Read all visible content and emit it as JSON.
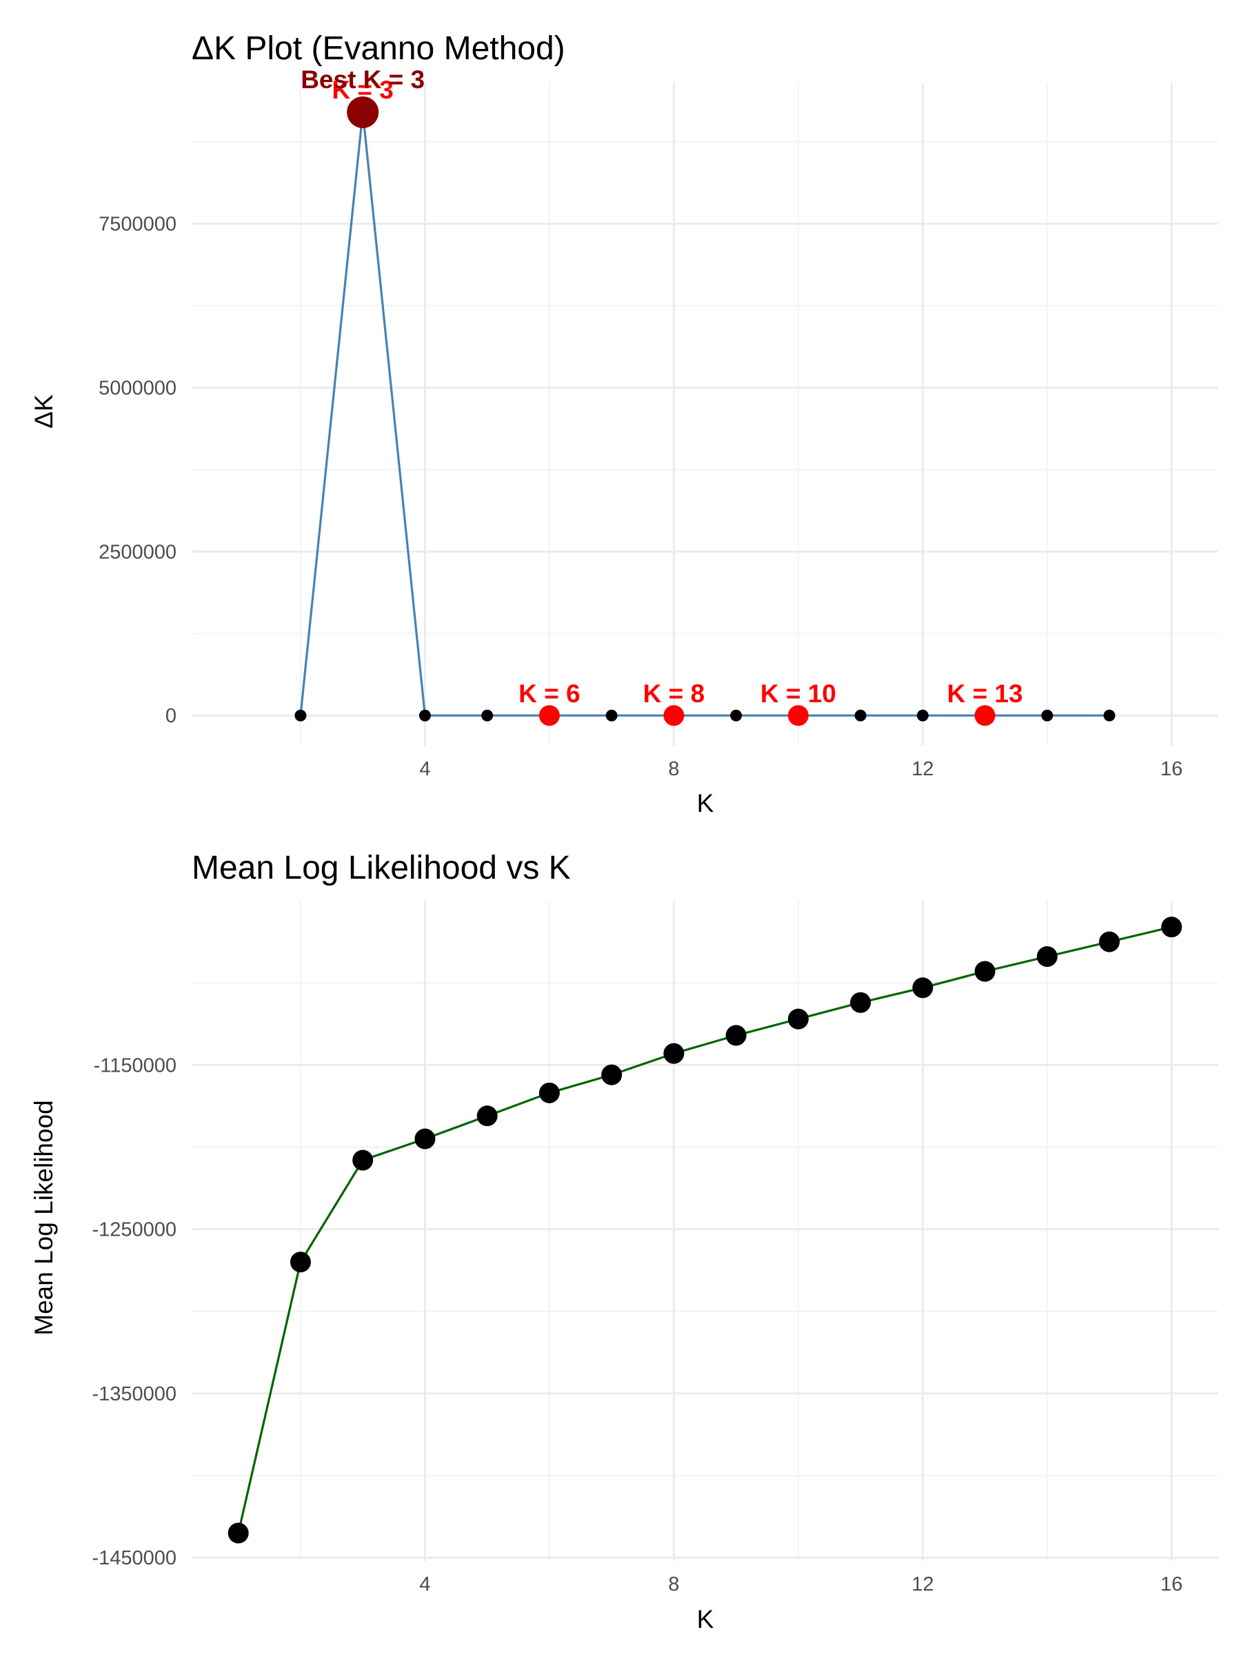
{
  "chart_data": [
    {
      "type": "line",
      "title": "ΔK Plot (Evanno Method)",
      "xlabel": "K",
      "ylabel": "ΔK",
      "x_ticks": [
        4,
        8,
        12,
        16
      ],
      "y_ticks": [
        "0",
        "2500000",
        "5000000",
        "7500000"
      ],
      "y_tick_values": [
        0,
        2500000,
        5000000,
        7500000
      ],
      "xlim": [
        0.25,
        16.75
      ],
      "ylim": [
        -460000,
        9650000
      ],
      "grid": true,
      "line_color": "#4682b4",
      "point_color": "#000000",
      "highlight_color": "#ff0000",
      "best_color": "#8b0000",
      "x": [
        2,
        3,
        4,
        5,
        6,
        7,
        8,
        9,
        10,
        11,
        12,
        13,
        14,
        15
      ],
      "y": [
        0,
        9200000,
        0,
        0,
        0,
        0,
        0,
        0,
        0,
        0,
        0,
        0,
        0,
        0
      ],
      "highlighted_k": [
        6,
        8,
        10,
        13
      ],
      "highlight_labels": [
        "K = 6",
        "K = 8",
        "K = 10",
        "K = 13"
      ],
      "best_k": 3,
      "best_labels": [
        "K = 3",
        "Best K = 3"
      ]
    },
    {
      "type": "line",
      "title": "Mean Log Likelihood vs K",
      "xlabel": "K",
      "ylabel": "Mean Log Likelihood",
      "x_ticks": [
        4,
        8,
        12,
        16
      ],
      "y_ticks": [
        "-1450000",
        "-1350000",
        "-1250000",
        "-1150000"
      ],
      "y_tick_values": [
        -1450000,
        -1350000,
        -1250000,
        -1150000
      ],
      "xlim": [
        0.25,
        16.75
      ],
      "ylim": [
        -1452000,
        -1050000
      ],
      "grid": true,
      "line_color": "#006400",
      "point_color": "#000000",
      "x": [
        1,
        2,
        3,
        4,
        5,
        6,
        7,
        8,
        9,
        10,
        11,
        12,
        13,
        14,
        15,
        16
      ],
      "y": [
        -1435000,
        -1270000,
        -1208000,
        -1195000,
        -1181000,
        -1167000,
        -1156000,
        -1143000,
        -1132000,
        -1122000,
        -1112000,
        -1103000,
        -1093000,
        -1084000,
        -1075000,
        -1066000
      ]
    }
  ]
}
